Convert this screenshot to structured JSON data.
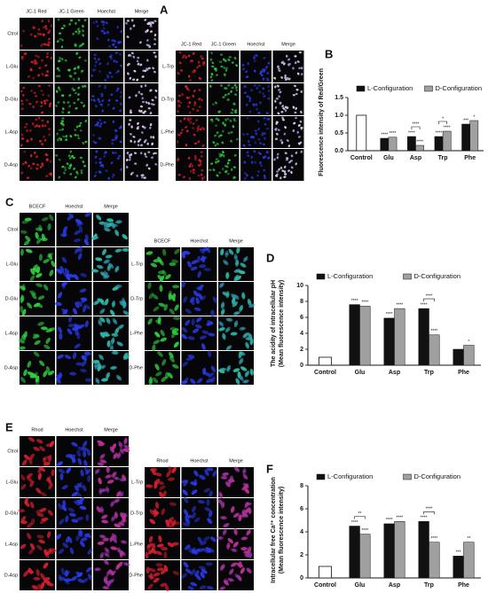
{
  "figure_panels": [
    {
      "label": "A",
      "columns": [
        {
          "label": "JC-1 Red",
          "color": "#e8202a"
        },
        {
          "label": "JC-1 Green",
          "color": "#30d040"
        },
        {
          "label": "Hoechst",
          "color": "#2a3cf0"
        },
        {
          "label": "Merge",
          "color": "#f0d8e8"
        }
      ],
      "rows_left": [
        "Ctrol",
        "L-Glu",
        "D-Glu",
        "L-Asp",
        "D-Asp"
      ],
      "rows_right": [
        "L-Trp",
        "D-Trp",
        "L-Phe",
        "D-Phe"
      ]
    },
    {
      "label": "C",
      "columns": [
        {
          "label": "BCECF",
          "color": "#30d040"
        },
        {
          "label": "Hoechst",
          "color": "#2a3cf0"
        },
        {
          "label": "Merge",
          "color": "#30c0a0"
        }
      ],
      "rows_left": [
        "Ctrol",
        "L-Glu",
        "D-Glu",
        "L-Asp",
        "D-Asp"
      ],
      "rows_right": [
        "L-Trp",
        "D-Trp",
        "L-Phe",
        "D-Phe"
      ]
    },
    {
      "label": "E",
      "columns": [
        {
          "label": "Rhod",
          "color": "#e02030"
        },
        {
          "label": "Hoechst",
          "color": "#2a3cf0"
        },
        {
          "label": "Merge",
          "color": "#c03090"
        }
      ],
      "rows_left": [
        "Ctrol",
        "L-Glu",
        "D-Glu",
        "L-Asp",
        "D-Asp"
      ],
      "rows_right": [
        "L-Trp",
        "D-Trp",
        "L-Phe",
        "D-Phe"
      ]
    }
  ],
  "chart_data": [
    {
      "type": "bar",
      "panel": "B",
      "ylabel": [
        "Fluorescence intensity of Red/Green"
      ],
      "categories": [
        "Control",
        "Glu",
        "Asp",
        "Trp",
        "Phe"
      ],
      "control": 1.0,
      "series": [
        {
          "name": "L-Configuration",
          "color": "#111111",
          "values": [
            null,
            0.35,
            0.4,
            0.4,
            0.75
          ],
          "significance": [
            null,
            "****",
            "****",
            "****",
            "***"
          ]
        },
        {
          "name": "D-Configuration",
          "color": "#a0a0a0",
          "values": [
            null,
            0.38,
            0.15,
            0.55,
            0.85
          ],
          "significance": [
            null,
            "****",
            "****",
            "****",
            "*"
          ]
        }
      ],
      "comparisons": [
        {
          "category": "Asp",
          "label": "****"
        },
        {
          "category": "Trp",
          "label": "*"
        }
      ],
      "ylim": [
        0,
        1.5
      ],
      "yticks": [
        {
          "value": 0,
          "label": "0.0"
        },
        0.5,
        {
          "value": 1,
          "label": "1.0"
        },
        1.5
      ],
      "legend": "top"
    },
    {
      "type": "bar",
      "panel": "D",
      "ylabel": [
        "The acidity of intracellular pH",
        "(Mean fluorescence intensity)"
      ],
      "categories": [
        "Control",
        "Glu",
        "Asp",
        "Trp",
        "Phe"
      ],
      "control": 1.0,
      "series": [
        {
          "name": "L-Configuration",
          "color": "#111111",
          "values": [
            null,
            7.6,
            5.9,
            7.1,
            2.0
          ],
          "significance": [
            null,
            "****",
            "****",
            "****",
            null
          ]
        },
        {
          "name": "D-Configuration",
          "color": "#a0a0a0",
          "values": [
            null,
            7.4,
            7.1,
            3.8,
            2.5
          ],
          "significance": [
            null,
            "****",
            "****",
            "****",
            "*"
          ]
        }
      ],
      "comparisons": [
        {
          "category": "Trp",
          "label": "****"
        }
      ],
      "ylim": [
        0,
        10
      ],
      "yticks": [
        0,
        2,
        4,
        6,
        8,
        10
      ],
      "legend": "top"
    },
    {
      "type": "bar",
      "panel": "F",
      "ylabel": [
        "Intracellular free Ca²⁺ concentration",
        "(Mean fluorescence intensity)"
      ],
      "categories": [
        "Control",
        "Glu",
        "Asp",
        "Trp",
        "Phe"
      ],
      "control": 1.0,
      "series": [
        {
          "name": "L-Configuration",
          "color": "#111111",
          "values": [
            null,
            4.5,
            4.7,
            4.9,
            1.9
          ],
          "significance": [
            null,
            "****",
            "****",
            "****",
            "***"
          ]
        },
        {
          "name": "D-Configuration",
          "color": "#a0a0a0",
          "values": [
            null,
            3.8,
            4.9,
            3.1,
            3.1
          ],
          "significance": [
            null,
            "****",
            "****",
            "****",
            "**"
          ]
        }
      ],
      "comparisons": [
        {
          "category": "Glu",
          "label": "**"
        },
        {
          "category": "Trp",
          "label": "****"
        }
      ],
      "ylim": [
        0,
        8
      ],
      "yticks": [
        0,
        2,
        4,
        6,
        8
      ],
      "legend": "top"
    }
  ]
}
